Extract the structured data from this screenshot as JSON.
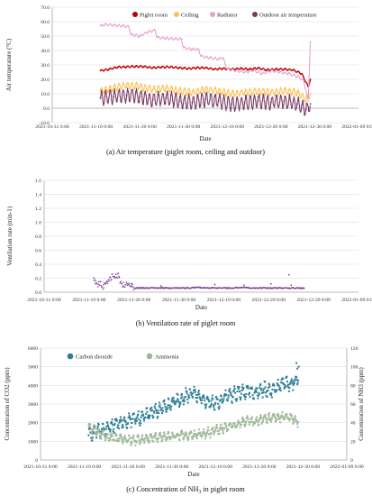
{
  "chart_data": [
    {
      "type": "line",
      "caption": "(a) Air temperature (piglet room, ceiling and outdoor)",
      "xlabel": "Date",
      "ylabel": "Air temperature (°C)",
      "ylim": [
        -10,
        70
      ],
      "y_ticks": [
        "-10.0",
        "0.0",
        "10.0",
        "20.0",
        "30.0",
        "40.0",
        "50.0",
        "60.0",
        "70.0"
      ],
      "x_ticks": [
        "2021-10-31 0:00",
        "2021-11-10 0:00",
        "2021-11-20 0:00",
        "2021-11-30 0:00",
        "2021-12-10 0:00",
        "2021-12-20 0:00",
        "2021-12-30 0:00",
        "2022-01-09 0:00"
      ],
      "xlim_days": [
        0,
        70
      ],
      "legend_position": "top",
      "series": [
        {
          "name": "Piglet room",
          "color": "#c00000",
          "x": [
            11,
            13,
            15,
            17,
            19,
            21,
            23,
            25,
            27,
            29,
            31,
            33,
            35,
            37,
            39,
            41,
            43,
            45,
            47,
            49,
            51,
            53,
            55,
            57,
            58.5,
            59
          ],
          "values": [
            26,
            27,
            28.5,
            28.7,
            29,
            28.8,
            28,
            28.5,
            28.6,
            28,
            27.5,
            28,
            28,
            27,
            27.5,
            27,
            27.5,
            27,
            27.8,
            26.5,
            27,
            27,
            26.5,
            24,
            15,
            20
          ]
        },
        {
          "name": "Ceiling",
          "color": "#ffc04d",
          "x": [
            11,
            14,
            17,
            20,
            23,
            26,
            29,
            32,
            35,
            38,
            41,
            44,
            47,
            50,
            53,
            56,
            58,
            59
          ],
          "values": [
            12,
            14,
            16,
            15,
            13,
            14,
            12,
            11,
            13,
            12,
            10,
            11,
            12,
            11,
            12,
            11,
            6,
            10
          ]
        },
        {
          "name": "Radiator",
          "color": "#e8a1cf",
          "x": [
            11,
            12,
            14,
            16,
            17.5,
            18,
            20,
            22,
            23.5,
            24,
            26,
            28,
            29.5,
            30,
            32,
            33.5,
            34,
            36,
            38,
            39,
            40,
            42,
            44,
            46,
            48,
            50,
            52,
            54,
            56,
            57.5,
            58.5,
            59
          ],
          "values": [
            57,
            58,
            57.5,
            57,
            56.5,
            51,
            50,
            53,
            54,
            49,
            48.5,
            48,
            48,
            42,
            41,
            40.5,
            36,
            35,
            34,
            35,
            27,
            26,
            25,
            26,
            24,
            26,
            25,
            24,
            22,
            19,
            5,
            46
          ]
        },
        {
          "name": "Outdoor air temperature",
          "color": "#7a3a64",
          "x": [
            11,
            14,
            17,
            20,
            23,
            26,
            29,
            32,
            35,
            38,
            41,
            44,
            47,
            50,
            53,
            56,
            58,
            59
          ],
          "values": [
            7,
            8,
            9,
            8,
            6,
            7,
            5,
            4,
            6,
            5,
            3,
            4,
            5,
            4,
            5,
            3,
            -1,
            3
          ]
        }
      ]
    },
    {
      "type": "scatter",
      "caption": "(b) Ventilation rate of piglet room",
      "xlabel": "Date",
      "ylabel": "Ventilation rate (min-1)",
      "ylim": [
        0,
        1.6
      ],
      "y_ticks": [
        "0.0",
        "0.2",
        "0.4",
        "0.6",
        "0.8",
        "1.0",
        "1.2",
        "1.4",
        "1.6"
      ],
      "x_ticks": [
        "2021-10-31 0:00",
        "2021-11-10 0:00",
        "2021-11-20 0:00",
        "2021-11-30 0:00",
        "2021-12-10 0:00",
        "2021-12-20 0:00",
        "2021-12-30 0:00",
        "2022-01-09 0:00"
      ],
      "xlim_days": [
        0,
        70
      ],
      "series": [
        {
          "name": "",
          "color": "#7b3f92",
          "x": [
            11,
            11.5,
            12,
            12.5,
            13,
            14,
            15,
            16,
            16.5,
            17,
            18,
            19,
            20,
            22,
            24,
            26,
            28,
            30,
            32,
            34,
            36,
            38,
            40,
            42,
            44,
            46,
            48,
            50,
            52,
            54,
            56,
            58
          ],
          "values": [
            0.2,
            0.14,
            0.1,
            0.16,
            0.08,
            0.12,
            0.22,
            0.25,
            0.24,
            0.12,
            0.1,
            0.12,
            0.06,
            0.06,
            0.06,
            0.06,
            0.06,
            0.06,
            0.06,
            0.07,
            0.06,
            0.06,
            0.06,
            0.06,
            0.07,
            0.06,
            0.06,
            0.06,
            0.06,
            0.06,
            0.06,
            0.06
          ]
        }
      ]
    },
    {
      "type": "scatter",
      "caption": "(c) Concentration of NH",
      "caption_sub": "3",
      "caption_tail": " in piglet room",
      "xlabel": "Date",
      "ylabel": "Concentration of CO2 (ppm)",
      "y2label": "Concentration of NH3 (ppm)",
      "ylim": [
        0,
        6000
      ],
      "y2lim": [
        0,
        120
      ],
      "y_ticks": [
        "0",
        "1000",
        "2000",
        "3000",
        "4000",
        "5000",
        "6000"
      ],
      "y2_ticks": [
        "0",
        "20",
        "40",
        "60",
        "80",
        "100",
        "120"
      ],
      "x_ticks": [
        "2021-10-31 0:00",
        "2021-11-10 0:00",
        "2021-11-20 0:00",
        "2021-11-30 0:00",
        "2021-12-10 0:00",
        "2021-12-20 0:00",
        "2021-12-30 0:00",
        "2022-01-09 0:00"
      ],
      "xlim_days": [
        0,
        70
      ],
      "legend_position": "top-left",
      "series": [
        {
          "name": "Carbon dioxide",
          "color": "#2f7e95",
          "axis": "left",
          "x": [
            11,
            13,
            15,
            17,
            19,
            21,
            23,
            25,
            27,
            29,
            31,
            33,
            35,
            37,
            39,
            41,
            43,
            45,
            47,
            49,
            51,
            53,
            55,
            57,
            59
          ],
          "values": [
            1300,
            1500,
            1700,
            1900,
            2000,
            2200,
            2300,
            2500,
            2700,
            2900,
            3100,
            3400,
            3600,
            3300,
            3000,
            3200,
            3400,
            3600,
            3700,
            3600,
            3800,
            3700,
            4000,
            4100,
            4300
          ]
        },
        {
          "name": "Ammonia",
          "color": "#a0b89a",
          "axis": "right",
          "x": [
            11,
            13,
            15,
            17,
            19,
            21,
            23,
            25,
            27,
            29,
            31,
            33,
            35,
            37,
            39,
            41,
            43,
            45,
            47,
            49,
            51,
            53,
            55,
            57,
            59
          ],
          "values": [
            35,
            30,
            26,
            23,
            22,
            21,
            22,
            24,
            25,
            25,
            26,
            27,
            27,
            28,
            30,
            33,
            36,
            38,
            42,
            41,
            44,
            45,
            46,
            46,
            40
          ]
        }
      ]
    }
  ]
}
